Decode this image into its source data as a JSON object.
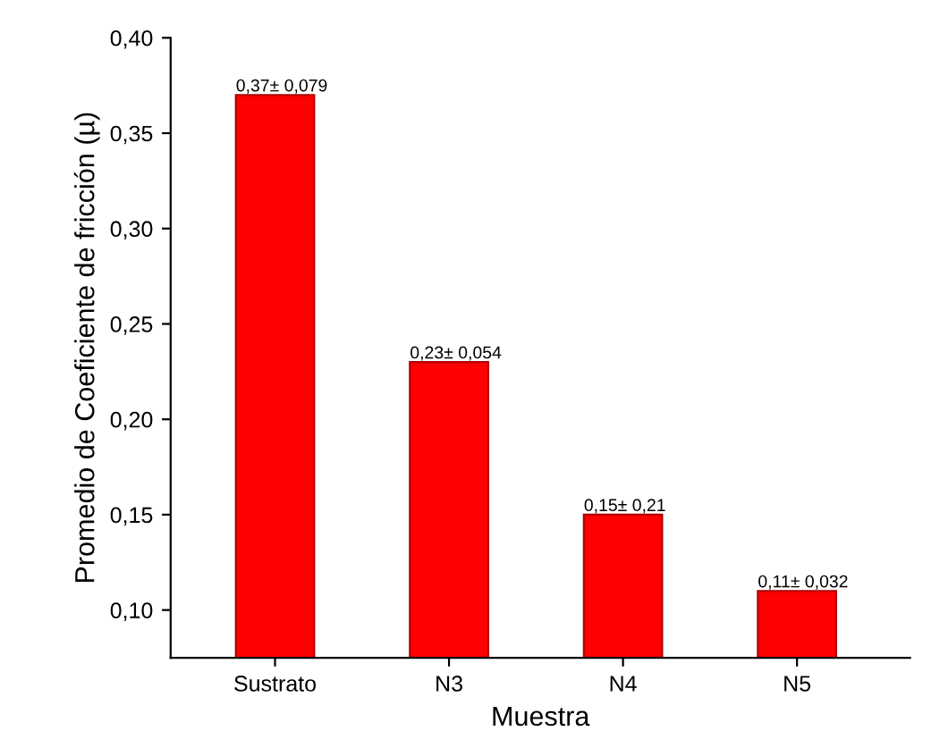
{
  "chart_data": {
    "type": "bar",
    "xlabel": "Muestra",
    "ylabel": "Promedio de Coeficiente de fricción (µ)",
    "categories": [
      "Sustrato",
      "N3",
      "N4",
      "N5"
    ],
    "values": [
      0.37,
      0.23,
      0.15,
      0.11
    ],
    "value_labels": [
      "0,37± 0,079",
      "0,23± 0,054",
      "0,15± 0,21",
      "0,11± 0,032"
    ],
    "color": "#ff0000",
    "ylim": [
      0.075,
      0.4
    ],
    "yticks": [
      {
        "value": 0.1,
        "label": "0,10"
      },
      {
        "value": 0.15,
        "label": "0,15"
      },
      {
        "value": 0.2,
        "label": "0,20"
      },
      {
        "value": 0.25,
        "label": "0,25"
      },
      {
        "value": 0.3,
        "label": "0,30"
      },
      {
        "value": 0.35,
        "label": "0,35"
      },
      {
        "value": 0.4,
        "label": "0,40"
      }
    ],
    "grid": false
  }
}
